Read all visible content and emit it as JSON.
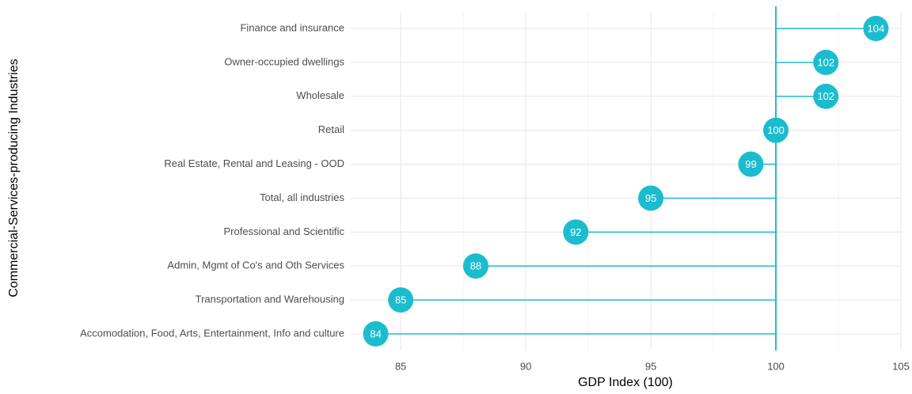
{
  "chart_data": {
    "type": "lollipop",
    "categories": [
      "Finance and insurance",
      "Owner-occupied dwellings",
      "Wholesale",
      "Retail",
      "Real Estate, Rental and Leasing - OOD",
      "Total, all industries",
      "Professional and Scientific",
      "Admin, Mgmt of Co's and Oth Services",
      "Transportation and Warehousing",
      "Accomodation, Food, Arts, Entertainment, Info and culture"
    ],
    "values": [
      104,
      102,
      102,
      100,
      99,
      95,
      92,
      88,
      85,
      84
    ],
    "baseline": 100,
    "color": "#1cbccf",
    "x_label": "GDP Index (100)",
    "y_label": "Commercial-Services-producing Industries",
    "xlim": [
      83,
      105
    ],
    "xticks": [
      85,
      90,
      95,
      100,
      105
    ],
    "minor_xticks": [
      87.5,
      92.5,
      97.5,
      102.5
    ],
    "grid": true
  }
}
